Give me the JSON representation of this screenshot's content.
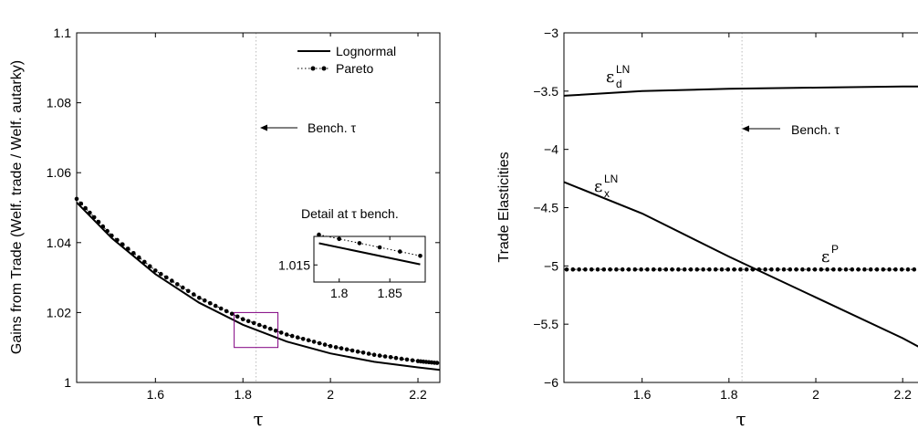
{
  "chart_data": [
    {
      "type": "line",
      "title": "",
      "xlabel": "τ",
      "ylabel": "Gains from Trade (Welf. trade / Welf. autarky)",
      "xlim": [
        1.42,
        2.25
      ],
      "ylim": [
        1.0,
        1.1
      ],
      "xticks": [
        1.6,
        1.8,
        2.0,
        2.2
      ],
      "xtick_labels": [
        "1.6",
        "1.8",
        "2",
        "2.2"
      ],
      "yticks": [
        1.0,
        1.02,
        1.04,
        1.06,
        1.08,
        1.1
      ],
      "ytick_labels": [
        "1",
        "1.02",
        "1.04",
        "1.06",
        "1.08",
        "1.1"
      ],
      "grid": false,
      "legend_position": "top-right",
      "legend": [
        "Lognormal",
        "Pareto"
      ],
      "benchmark_tau": 1.83,
      "annotation": "Bench. τ",
      "series": [
        {
          "name": "Lognormal",
          "style": "solid",
          "color": "#000000",
          "x": [
            1.42,
            1.5,
            1.6,
            1.7,
            1.8,
            1.9,
            2.0,
            2.1,
            2.2,
            2.25
          ],
          "y": [
            1.0515,
            1.0413,
            1.031,
            1.0228,
            1.0165,
            1.0117,
            1.0083,
            1.0059,
            1.0043,
            1.0036
          ]
        },
        {
          "name": "Pareto",
          "style": "dotted-with-markers",
          "color": "#000000",
          "x": [
            1.42,
            1.5,
            1.6,
            1.7,
            1.8,
            1.9,
            2.0,
            2.1,
            2.2,
            2.25
          ],
          "y": [
            1.0525,
            1.042,
            1.032,
            1.0242,
            1.0181,
            1.0137,
            1.0104,
            1.0079,
            1.0061,
            1.0055
          ]
        }
      ],
      "highlight_box": {
        "x": [
          1.78,
          1.88
        ],
        "y": [
          1.01,
          1.02
        ],
        "color": "#800080"
      },
      "inset": {
        "title": "Detail at τ bench.",
        "xlim": [
          1.775,
          1.885
        ],
        "ylim": [
          1.0135,
          1.0175
        ],
        "xticks": [
          1.8,
          1.85
        ],
        "xtick_labels": [
          "1.8",
          "1.85"
        ],
        "yticks": [
          1.015
        ],
        "ytick_labels": [
          "1.015"
        ],
        "series": [
          {
            "name": "Lognormal",
            "x": [
              1.78,
              1.88
            ],
            "y": [
              1.0169,
              1.01505
            ]
          },
          {
            "name": "Pareto",
            "x": [
              1.78,
              1.88
            ],
            "y": [
              1.01765,
              1.0158
            ]
          }
        ]
      }
    },
    {
      "type": "line",
      "title": "",
      "xlabel": "τ",
      "ylabel": "Trade Elasticities",
      "xlim": [
        1.42,
        2.25
      ],
      "ylim": [
        -6,
        -3
      ],
      "xticks": [
        1.6,
        1.8,
        2.0,
        2.2
      ],
      "xtick_labels": [
        "1.6",
        "1.8",
        "2",
        "2.2"
      ],
      "yticks": [
        -6,
        -5.5,
        -5,
        -4.5,
        -4,
        -3.5,
        -3
      ],
      "ytick_labels": [
        "−6",
        "−5.5",
        "−5",
        "−4.5",
        "−4",
        "−3.5",
        "−3"
      ],
      "grid": false,
      "benchmark_tau": 1.83,
      "annotation": "Bench. τ",
      "series": [
        {
          "label_base": "ε",
          "label_sub": "d",
          "label_sup": "LN",
          "style": "solid",
          "x": [
            1.42,
            1.6,
            1.8,
            2.0,
            2.2,
            2.25
          ],
          "y": [
            -3.54,
            -3.5,
            -3.48,
            -3.47,
            -3.46,
            -3.46
          ]
        },
        {
          "label_base": "ε",
          "label_sub": "x",
          "label_sup": "LN",
          "style": "solid",
          "x": [
            1.42,
            1.6,
            1.8,
            2.0,
            2.2,
            2.25
          ],
          "y": [
            -4.28,
            -4.55,
            -4.92,
            -5.27,
            -5.62,
            -5.72
          ]
        },
        {
          "label_base": "ε",
          "label_sub": "",
          "label_sup": "P",
          "style": "dotted-with-markers",
          "x": [
            1.42,
            2.25
          ],
          "y": [
            -5.03,
            -5.03
          ]
        }
      ]
    }
  ]
}
